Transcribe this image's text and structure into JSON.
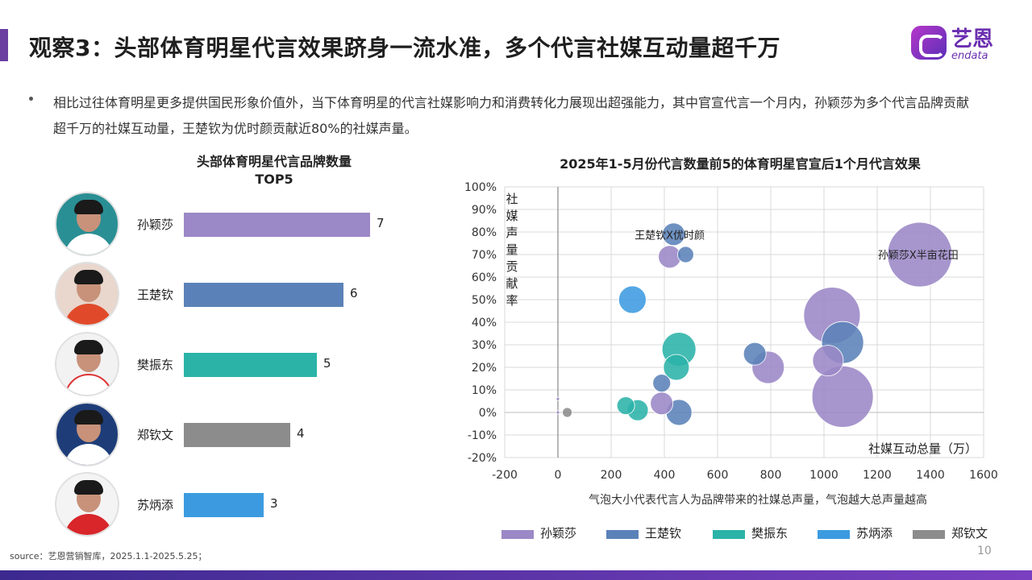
{
  "header": {
    "title": "观察3：头部体育明星代言效果跻身一流水准，多个代言社媒互动量超千万",
    "logo_cn": "艺恩",
    "logo_en": "endata"
  },
  "bullet": "相比过往体育明星更多提供国民形象价值外，当下体育明星的代言社媒影响力和消费转化力展现出超强能力，其中官宣代言一个月内，孙颖莎为多个代言品牌贡献超千万的社媒互动量，王楚钦为优时颜贡献近80%的社媒声量。",
  "colors": {
    "accent": "#6a3fa0",
    "sun": "#9b88c6",
    "wang": "#5b82b8",
    "fan": "#2bb3a8",
    "su": "#3c9be0",
    "zheng": "#8c8c8c"
  },
  "chart_data": [
    {
      "type": "bar",
      "title_line1": "头部体育明星代言品牌数量",
      "title_line2": "TOP5",
      "categories": [
        "孙颖莎",
        "王楚钦",
        "樊振东",
        "郑钦文",
        "苏炳添"
      ],
      "values": [
        7,
        6,
        5,
        4,
        3
      ],
      "colors": [
        "#9b88c6",
        "#5b82b8",
        "#2bb3a8",
        "#8c8c8c",
        "#3c9be0"
      ],
      "value_labels": [
        "7",
        "6",
        "5",
        "4",
        "3"
      ]
    },
    {
      "type": "scatter",
      "title": "2025年1-5月份代言数量前5的体育明星官宣后1个月代言效果",
      "xlabel": "社媒互动总量（万）",
      "ylabel": "社媒声量贡献率",
      "xlim": [
        -200,
        1600
      ],
      "ylim": [
        -20,
        100
      ],
      "x_ticks": [
        "-200",
        "0",
        "200",
        "400",
        "600",
        "800",
        "1000",
        "1200",
        "1400",
        "1600"
      ],
      "y_ticks": [
        "-20%",
        "-10%",
        "0%",
        "10%",
        "20%",
        "30%",
        "40%",
        "50%",
        "60%",
        "70%",
        "80%",
        "90%",
        "100%"
      ],
      "grid": true,
      "note": "气泡大小代表代言人为品牌带来的社媒总声量，气泡越大总声量越高",
      "annotations": [
        "王楚钦X优时颜",
        "孙颖莎X半亩花田"
      ],
      "series": [
        {
          "name": "孙颖莎",
          "color": "#9b88c6",
          "points": [
            {
              "x": 1360,
              "y": 70,
              "size": 40
            },
            {
              "x": 1030,
              "y": 43,
              "size": 35
            },
            {
              "x": 1070,
              "y": 7,
              "size": 38
            },
            {
              "x": 790,
              "y": 20,
              "size": 20
            },
            {
              "x": 1015,
              "y": 23,
              "size": 19
            },
            {
              "x": 420,
              "y": 69,
              "size": 14
            },
            {
              "x": 390,
              "y": 4,
              "size": 14
            },
            {
              "x": 0,
              "y": 0,
              "size": 2
            },
            {
              "x": 0,
              "y": 6,
              "size": 2
            }
          ]
        },
        {
          "name": "王楚钦",
          "color": "#5b82b8",
          "points": [
            {
              "x": 435,
              "y": 79,
              "size": 14
            },
            {
              "x": 480,
              "y": 70,
              "size": 10
            },
            {
              "x": 740,
              "y": 26,
              "size": 14
            },
            {
              "x": 1070,
              "y": 31,
              "size": 26
            },
            {
              "x": 390,
              "y": 13,
              "size": 11
            },
            {
              "x": 455,
              "y": 0,
              "size": 16
            }
          ]
        },
        {
          "name": "樊振东",
          "color": "#2bb3a8",
          "points": [
            {
              "x": 455,
              "y": 28,
              "size": 21
            },
            {
              "x": 445,
              "y": 20,
              "size": 16
            },
            {
              "x": 255,
              "y": 3,
              "size": 11
            },
            {
              "x": 300,
              "y": 1,
              "size": 13
            }
          ]
        },
        {
          "name": "苏炳添",
          "color": "#3c9be0",
          "points": [
            {
              "x": 280,
              "y": 50,
              "size": 17
            }
          ]
        },
        {
          "name": "郑钦文",
          "color": "#8c8c8c",
          "points": [
            {
              "x": 35,
              "y": 0,
              "size": 6
            }
          ]
        }
      ]
    }
  ],
  "legend": [
    "孙颖莎",
    "王楚钦",
    "樊振东",
    "苏炳添",
    "郑钦文"
  ],
  "source": "source：艺恩营销智库，2025.1.1-2025.5.25；",
  "page_number": "10"
}
